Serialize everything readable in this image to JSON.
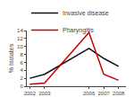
{
  "chart_data": {
    "type": "line",
    "x": [
      2002,
      2003,
      2006,
      2007,
      2008
    ],
    "series": [
      {
        "name": "Invasive disease",
        "color": "#111111",
        "values": [
          2,
          3,
          9.5,
          7,
          5
        ]
      },
      {
        "name": "Pharyngitis",
        "color": "#cc0000",
        "values": [
          0.5,
          0.8,
          13.5,
          3,
          1.5
        ]
      }
    ],
    "ylabel": "% Isolates",
    "xlim": [
      2001.8,
      2008.5
    ],
    "xticks": [
      2002,
      2003,
      2006,
      2007,
      2008
    ],
    "ylim": [
      0,
      14
    ],
    "yticks": [
      0,
      2,
      4,
      6,
      8,
      10,
      12,
      14
    ],
    "grid": false,
    "legend": "upper left"
  }
}
